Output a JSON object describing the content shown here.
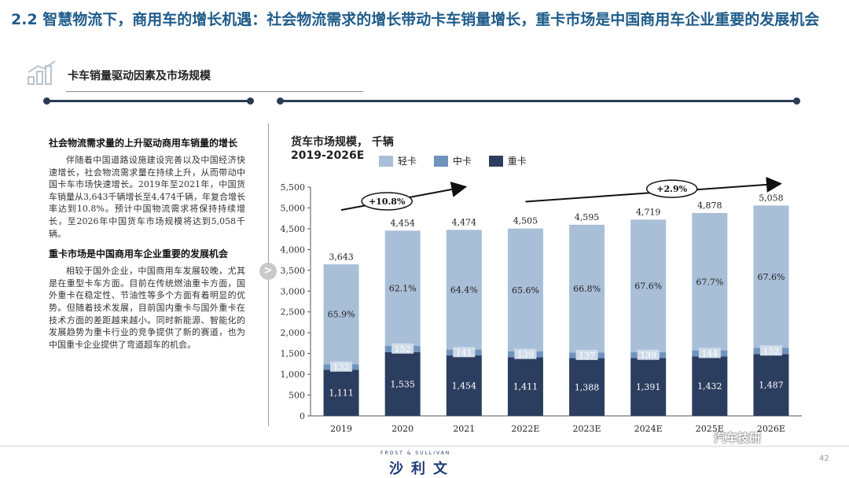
{
  "header": {
    "title": "2.2 智慧物流下，商用车的增长机遇：社会物流需求的增长带动卡车销量增长，重卡市场是中国商用车企业重要的发展机会",
    "subtitle": "卡车销量驱动因素及市场规模"
  },
  "left_panel": {
    "heading1": "社会物流需求量的上升驱动商用车销量的增长",
    "para1": "伴随着中国道路设施建设完善以及中国经济快速增长，社会物流需求量在持续上升，从而带动中国卡车市场快速增长。2019年至2021年，中国货车销量从3,643千辆增长至4,474千辆，年复合增长率达到10.8%。预计中国物流需求将保持持续增长，至2026年中国货车市场规模将达到5,058千辆。",
    "heading2": "重卡市场是中国商用车企业重要的发展机会",
    "para2": "相较于国外企业，中国商用车发展较晚，尤其是在重型卡车方面。目前在传统燃油重卡方面，国外重卡在稳定性、节油性等多个方面有着明显的优势。但随着技术发展，目前国内重卡与国外重卡在技术方面的差距越来越小。同时新能源、智能化的发展趋势为重卡行业的竞争提供了新的赛道，也为中国重卡企业提供了弯道超车的机会。",
    "arrow_glyph": ">"
  },
  "chart_header": {
    "title": "货车市场规模，  千辆",
    "period": "2019-2026E"
  },
  "chart_data": {
    "type": "bar",
    "stacked": true,
    "categories": [
      "2019",
      "2020",
      "2021",
      "2022E",
      "2023E",
      "2024E",
      "2025E",
      "2026E"
    ],
    "series": [
      {
        "name": "重卡",
        "color": "#2c3e5f",
        "values": [
          1111,
          1535,
          1454,
          1411,
          1388,
          1391,
          1432,
          1487
        ]
      },
      {
        "name": "中卡",
        "color": "#6f93bd",
        "values": [
          132,
          152,
          141,
          139,
          137,
          139,
          144,
          152
        ]
      },
      {
        "name": "轻卡",
        "color": "#a9bfd8",
        "values": [
          2400,
          2767,
          2879,
          2955,
          3070,
          3189,
          3302,
          3419
        ]
      }
    ],
    "totals": [
      "3,643",
      "4,454",
      "4,474",
      "4,505",
      "4,595",
      "4,719",
      "4,878",
      "5,058"
    ],
    "heavy_labels": [
      "1,111",
      "1,535",
      "1,454",
      "1,411",
      "1,388",
      "1,391",
      "1,432",
      "1,487"
    ],
    "medium_labels": [
      "132",
      "152",
      "141",
      "139",
      "137",
      "139",
      "144",
      "152"
    ],
    "light_share_labels": [
      "65.9%",
      "62.1%",
      "64.4%",
      "65.6%",
      "66.8%",
      "67.6%",
      "67.7%",
      "67.6%"
    ],
    "legend": [
      "轻卡",
      "中卡",
      "重卡"
    ],
    "ylim": [
      0,
      5500
    ],
    "yticks": [
      0,
      500,
      1000,
      1500,
      2000,
      2500,
      3000,
      3500,
      4000,
      4500,
      5000,
      5500
    ],
    "ytick_labels": [
      "0",
      "500",
      "1,000",
      "1,500",
      "2,000",
      "2,500",
      "3,000",
      "3,500",
      "4,000",
      "4,500",
      "5,000",
      "5,500"
    ],
    "annotations": [
      {
        "text": "+10.8%",
        "from": "2019",
        "to": "2021"
      },
      {
        "text": "+2.9%",
        "from": "2022E",
        "to": "2026E"
      }
    ],
    "grid": false,
    "legend_position": "top"
  },
  "footer": {
    "brand_en": "FROST & SULLIVAN",
    "brand_cn": "沙利文",
    "page_number": "42",
    "watermark": "汽车技研"
  }
}
